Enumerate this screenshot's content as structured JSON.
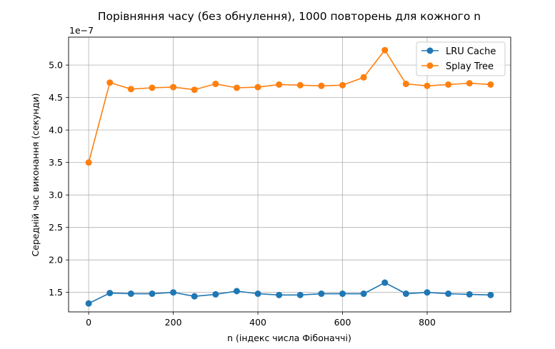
{
  "chart_data": {
    "type": "line",
    "title": "Порівняння часу (без обнулення), 1000 повторень для кожного n",
    "xlabel": "n (індекс числа Фібоначчі)",
    "ylabel": "Середній час виконання (секунди)",
    "y_offset_label": "1e−7",
    "x": [
      0,
      50,
      100,
      150,
      200,
      250,
      300,
      350,
      400,
      450,
      500,
      550,
      600,
      650,
      700,
      750,
      800,
      850,
      900,
      950
    ],
    "xlim": [
      -47.5,
      997.5
    ],
    "ylim": [
      1.2,
      5.43
    ],
    "xticks": [
      0,
      200,
      400,
      600,
      800
    ],
    "xtick_labels": [
      "0",
      "200",
      "400",
      "600",
      "800"
    ],
    "yticks": [
      1.5,
      2.0,
      2.5,
      3.0,
      3.5,
      4.0,
      4.5,
      5.0
    ],
    "ytick_labels": [
      "1.5",
      "2.0",
      "2.5",
      "3.0",
      "3.5",
      "4.0",
      "4.5",
      "5.0"
    ],
    "grid": true,
    "legend_position": "top-right",
    "series": [
      {
        "name": "LRU Cache",
        "color": "#1f77b4",
        "marker": "circle",
        "values": [
          1.33,
          1.49,
          1.48,
          1.48,
          1.5,
          1.44,
          1.47,
          1.52,
          1.48,
          1.46,
          1.46,
          1.48,
          1.48,
          1.48,
          1.65,
          1.48,
          1.5,
          1.48,
          1.47,
          1.46
        ]
      },
      {
        "name": "Splay Tree",
        "color": "#ff7f0e",
        "marker": "circle",
        "values": [
          3.5,
          4.73,
          4.63,
          4.65,
          4.66,
          4.62,
          4.71,
          4.65,
          4.66,
          4.7,
          4.69,
          4.68,
          4.69,
          4.81,
          5.23,
          4.71,
          4.68,
          4.7,
          4.72,
          4.7
        ]
      }
    ]
  }
}
